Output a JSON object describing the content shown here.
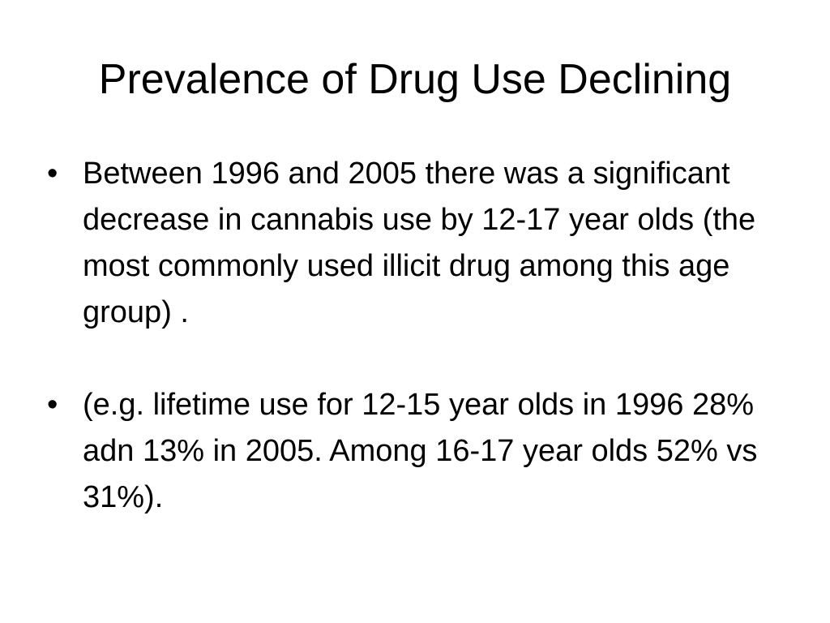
{
  "slide": {
    "title": "Prevalence of Drug Use Declining",
    "bullets": [
      {
        "marker": "•",
        "text": "Between 1996 and 2005 there was a significant decrease in cannabis use by 12-17 year olds (the most commonly used illicit drug among this age group) ."
      },
      {
        "marker": "•",
        "text": "(e.g. lifetime use for 12-15 year olds in 1996 28% adn 13% in 2005. Among 16-17 year olds 52% vs 31%)."
      }
    ]
  }
}
